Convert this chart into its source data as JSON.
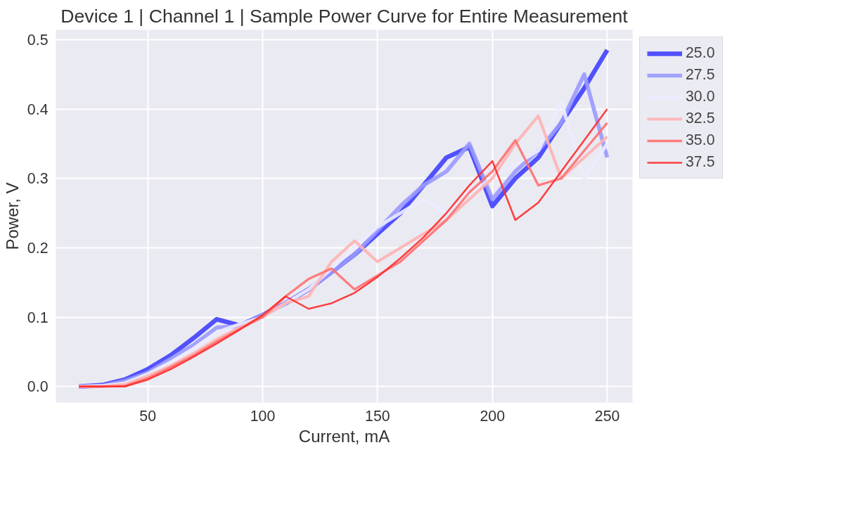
{
  "chart_data": {
    "type": "line",
    "title": "Device 1 | Channel 1 | Sample Power Curve for Entire Measurement",
    "xlabel": "Current, mA",
    "ylabel": "Power, V",
    "x": [
      20,
      30,
      40,
      50,
      60,
      70,
      80,
      90,
      100,
      110,
      120,
      130,
      140,
      150,
      160,
      170,
      180,
      190,
      200,
      210,
      220,
      230,
      240,
      250
    ],
    "series": [
      {
        "name": "25.0",
        "color": "#4040ff",
        "values": [
          0,
          0.002,
          0.01,
          0.025,
          0.045,
          0.07,
          0.097,
          0.088,
          0.103,
          0.12,
          0.14,
          0.165,
          0.19,
          0.22,
          0.25,
          0.29,
          0.33,
          0.345,
          0.26,
          0.3,
          0.33,
          0.38,
          0.43,
          0.485
        ]
      },
      {
        "name": "27.5",
        "color": "#9a9aff",
        "values": [
          0,
          0.001,
          0.008,
          0.02,
          0.04,
          0.06,
          0.085,
          0.087,
          0.103,
          0.12,
          0.14,
          0.165,
          0.19,
          0.225,
          0.26,
          0.29,
          0.31,
          0.35,
          0.27,
          0.31,
          0.34,
          0.38,
          0.45,
          0.33
        ]
      },
      {
        "name": "30.0",
        "color": "#ececff",
        "values": [
          0,
          0.001,
          0.005,
          0.018,
          0.035,
          0.055,
          0.078,
          0.09,
          0.1,
          0.12,
          0.14,
          0.17,
          0.2,
          0.23,
          0.25,
          0.27,
          0.25,
          0.28,
          0.3,
          0.32,
          0.34,
          0.41,
          0.3,
          0.35
        ]
      },
      {
        "name": "32.5",
        "color": "#ffb3b3",
        "values": [
          0,
          0,
          0.003,
          0.015,
          0.03,
          0.048,
          0.068,
          0.085,
          0.1,
          0.12,
          0.13,
          0.18,
          0.21,
          0.18,
          0.2,
          0.22,
          0.24,
          0.27,
          0.3,
          0.35,
          0.39,
          0.3,
          0.33,
          0.36
        ]
      },
      {
        "name": "35.0",
        "color": "#ff7070",
        "values": [
          0,
          0,
          0.001,
          0.012,
          0.028,
          0.045,
          0.065,
          0.083,
          0.1,
          0.13,
          0.155,
          0.17,
          0.14,
          0.16,
          0.18,
          0.21,
          0.24,
          0.28,
          0.31,
          0.355,
          0.29,
          0.3,
          0.34,
          0.38
        ]
      },
      {
        "name": "37.5",
        "color": "#ff2a2a",
        "values": [
          0,
          0,
          0,
          0.01,
          0.025,
          0.043,
          0.062,
          0.082,
          0.103,
          0.13,
          0.112,
          0.12,
          0.135,
          0.158,
          0.185,
          0.215,
          0.25,
          0.29,
          0.325,
          0.24,
          0.265,
          0.31,
          0.355,
          0.4
        ]
      }
    ],
    "xlim": [
      10,
      261
    ],
    "ylim": [
      -0.023,
      0.514
    ],
    "xticks": [
      50,
      100,
      150,
      200,
      250
    ],
    "yticks": [
      {
        "value": 0,
        "label": "0.0"
      },
      {
        "value": 0.1,
        "label": "0.1"
      },
      {
        "value": 0.2,
        "label": "0.2"
      },
      {
        "value": 0.3,
        "label": "0.3"
      },
      {
        "value": 0.4,
        "label": "0.4"
      },
      {
        "value": 0.5,
        "label": "0.5"
      }
    ],
    "grid": true,
    "legend": "top right",
    "line_style": "solid"
  }
}
